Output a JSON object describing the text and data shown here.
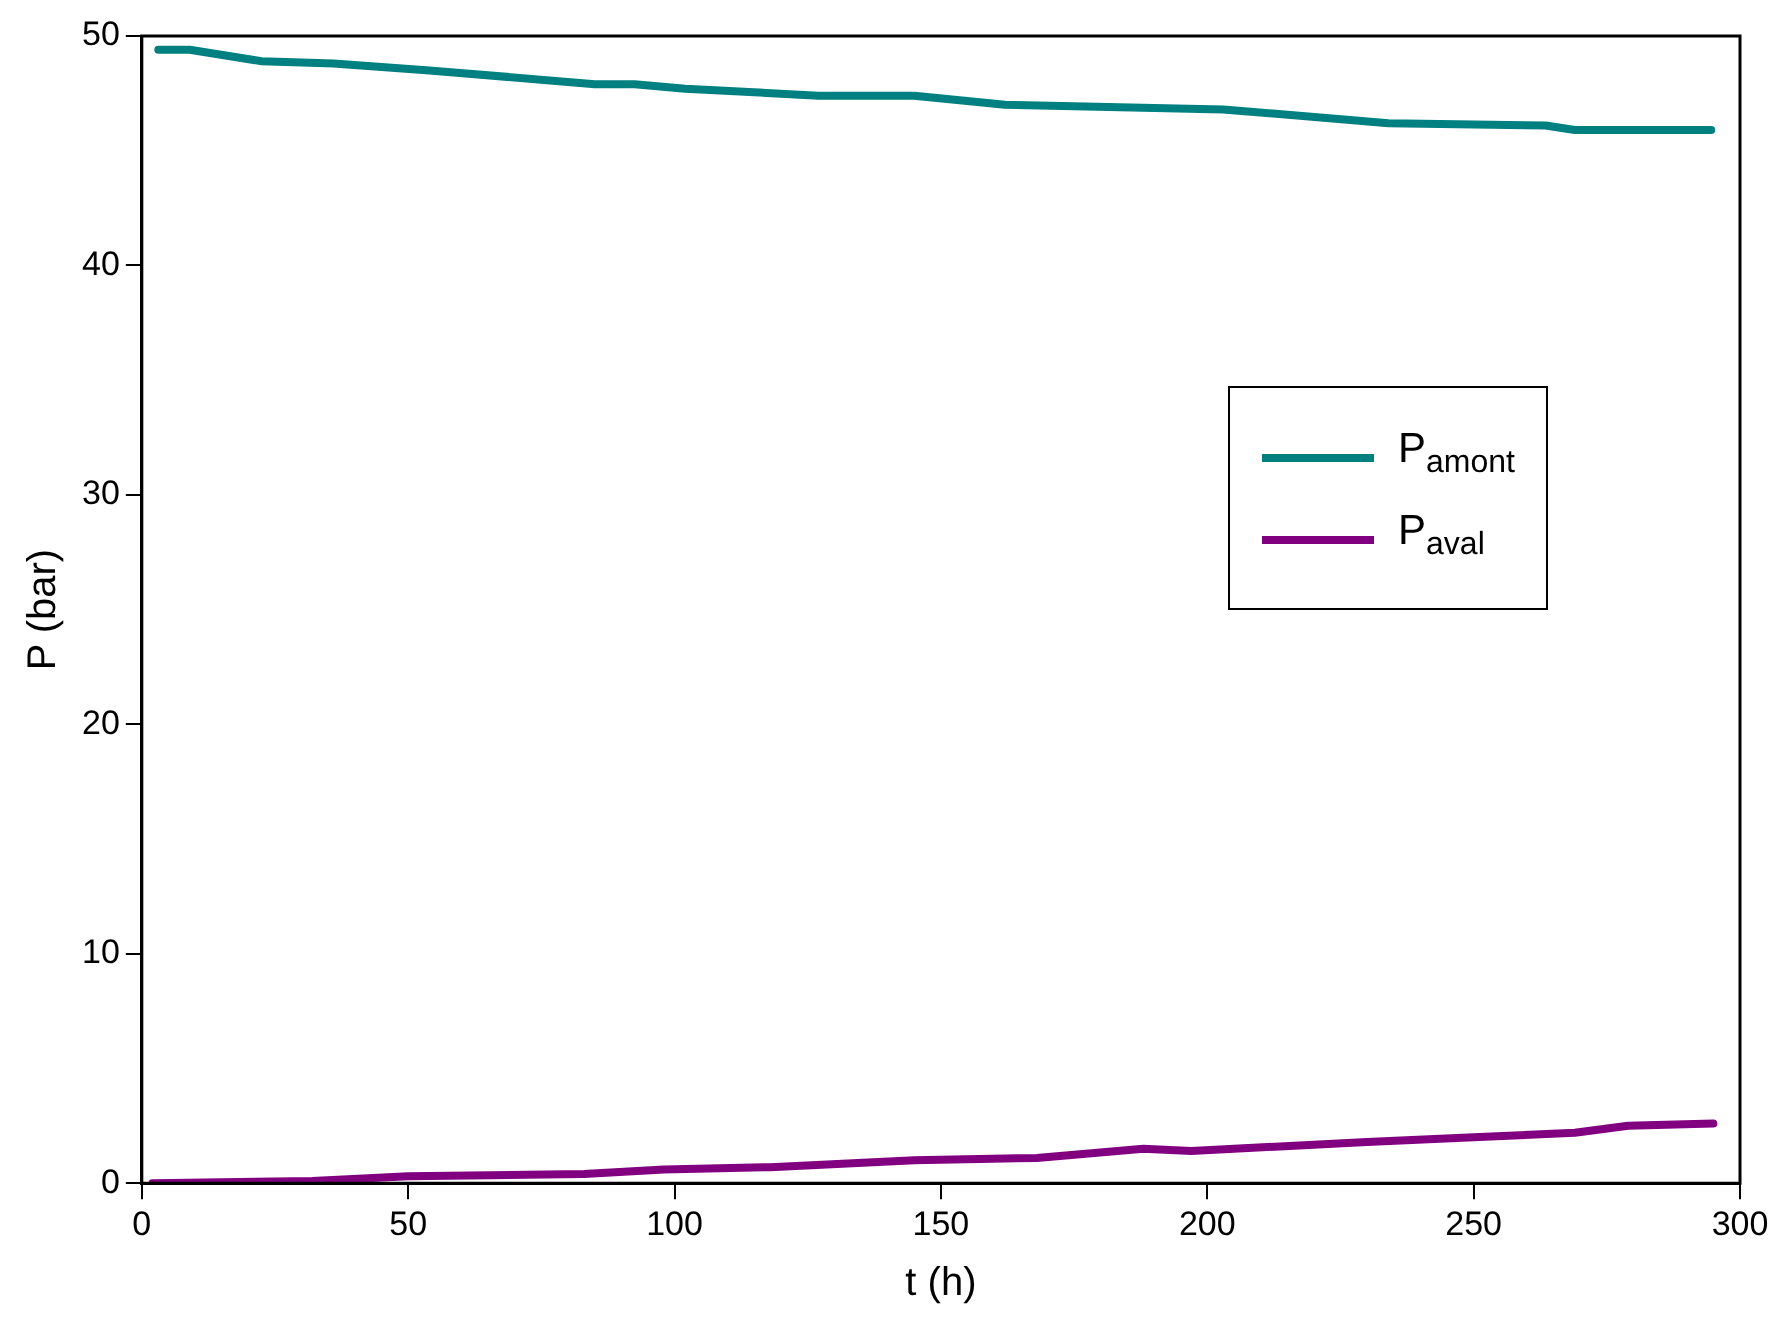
{
  "chart_data": {
    "type": "line",
    "xlabel": "t (h)",
    "ylabel": "P (bar)",
    "xlim": [
      0,
      300
    ],
    "xticks": [
      0,
      50,
      100,
      150,
      200,
      250,
      300
    ],
    "ylim": [
      0,
      50
    ],
    "yticks": [
      0,
      10,
      20,
      30,
      40,
      50
    ],
    "grid": false,
    "legend": "right",
    "marker": "none",
    "line_style": "solid",
    "series": [
      {
        "name": "P$_{amont}$",
        "color": "#008080",
        "x": [
          3.1,
          9,
          22.5,
          36,
          54,
          85,
          92.5,
          102,
          127,
          145,
          162,
          203,
          234,
          263.5,
          269,
          294.6
        ],
        "values": [
          49.4,
          49.4,
          48.9,
          48.8,
          48.5,
          47.9,
          47.9,
          47.7,
          47.4,
          47.4,
          47.0,
          46.8,
          46.2,
          46.1,
          45.9,
          45.9
        ]
      },
      {
        "name": "P$_{aval}$",
        "color": "#800080",
        "x": [
          2,
          32,
          50,
          83,
          98,
          118,
          145,
          168,
          188,
          197,
          230,
          250,
          269,
          279,
          295
        ],
        "values": [
          0.0,
          0.1,
          0.3,
          0.4,
          0.6,
          0.7,
          1.0,
          1.1,
          1.5,
          1.4,
          1.8,
          2.0,
          2.2,
          2.5,
          2.6
        ]
      }
    ]
  }
}
